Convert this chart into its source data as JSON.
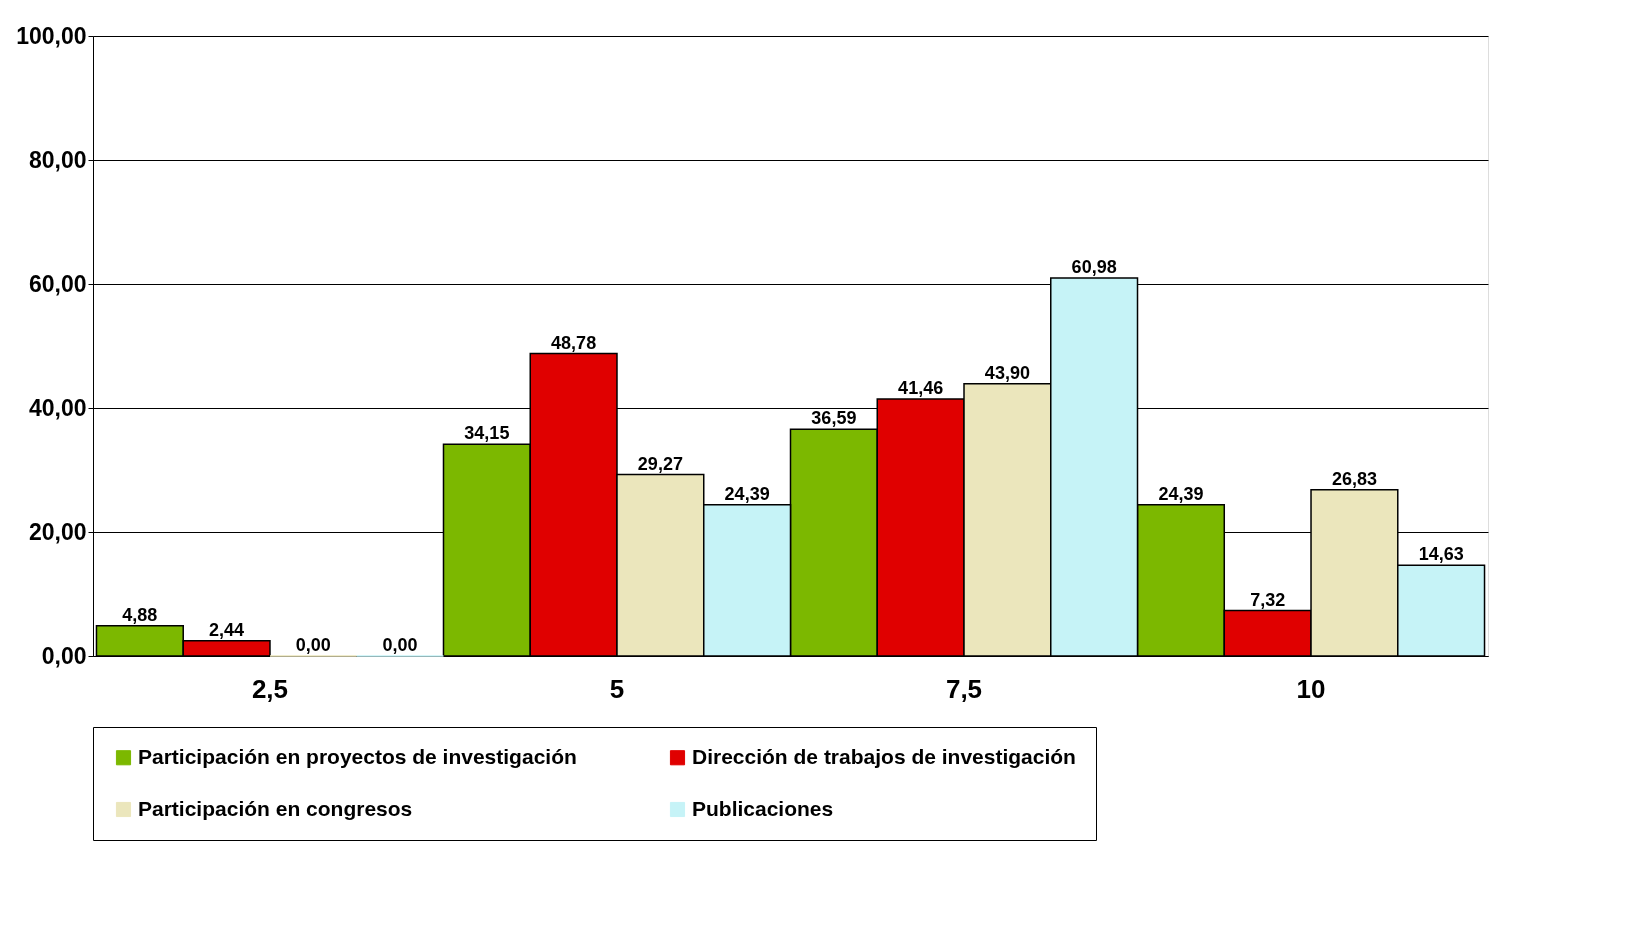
{
  "chart_data": {
    "type": "bar",
    "categories": [
      "2,5",
      "5",
      "7,5",
      "10"
    ],
    "series": [
      {
        "name": "Participación en proyectos de investigación",
        "color": "#7cb800",
        "values": [
          4.88,
          34.15,
          36.59,
          24.39
        ],
        "value_labels": [
          "4,88",
          "34,15",
          "36,59",
          "24,39"
        ]
      },
      {
        "name": "Dirección de trabajos de investigación",
        "color": "#e00000",
        "values": [
          2.44,
          48.78,
          41.46,
          7.32
        ],
        "value_labels": [
          "2,44",
          "48,78",
          "41,46",
          "7,32"
        ]
      },
      {
        "name": "Participación en congresos",
        "color": "#ebe6bc",
        "values": [
          0.0,
          29.27,
          43.9,
          26.83
        ],
        "value_labels": [
          "0,00",
          "29,27",
          "43,90",
          "26,83"
        ]
      },
      {
        "name": "Publicaciones",
        "color": "#c6f3f7",
        "values": [
          0.0,
          24.39,
          60.98,
          14.63
        ],
        "value_labels": [
          "0,00",
          "24,39",
          "60,98",
          "14,63"
        ]
      }
    ],
    "ylim": [
      0,
      100
    ],
    "yticks": [
      {
        "value": 0,
        "label": "0,00"
      },
      {
        "value": 20,
        "label": "20,00"
      },
      {
        "value": 40,
        "label": "40,00"
      },
      {
        "value": 60,
        "label": "60,00"
      },
      {
        "value": 80,
        "label": "80,00"
      },
      {
        "value": 100,
        "label": "100,00"
      }
    ],
    "grid": "y",
    "legend": "bottom"
  }
}
